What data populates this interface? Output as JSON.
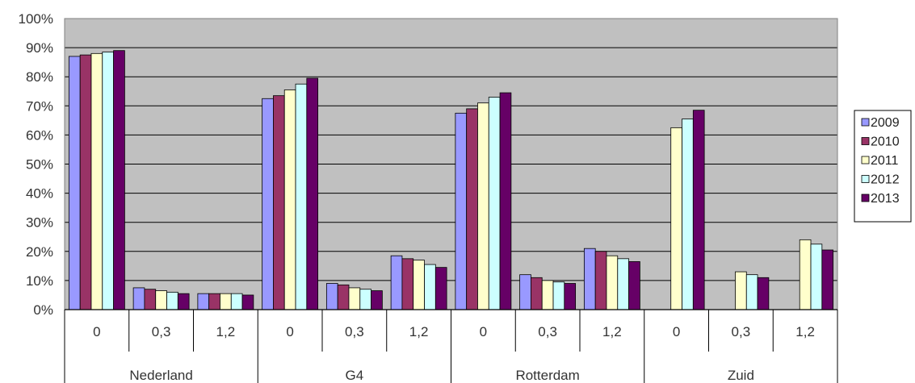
{
  "chart_data": {
    "type": "bar",
    "groups": [
      {
        "name": "Nederland",
        "categories": [
          "0",
          "0,3",
          "1,2"
        ]
      },
      {
        "name": "G4",
        "categories": [
          "0",
          "0,3",
          "1,2"
        ]
      },
      {
        "name": "Rotterdam",
        "categories": [
          "0",
          "0,3",
          "1,2"
        ]
      },
      {
        "name": "Zuid",
        "categories": [
          "0",
          "0,3",
          "1,2"
        ]
      }
    ],
    "series": [
      {
        "name": "2009",
        "color": "#9999ff",
        "values": [
          87,
          7.5,
          5.5,
          72.5,
          9,
          18.5,
          67.5,
          12,
          21,
          null,
          null,
          null
        ]
      },
      {
        "name": "2010",
        "color": "#993366",
        "values": [
          87.5,
          7,
          5.5,
          73.5,
          8.5,
          17.5,
          69,
          11,
          20,
          null,
          null,
          null
        ]
      },
      {
        "name": "2011",
        "color": "#ffffcc",
        "values": [
          88,
          6.5,
          5.5,
          75.5,
          7.5,
          17,
          71,
          10,
          18.5,
          62.5,
          13,
          24
        ]
      },
      {
        "name": "2012",
        "color": "#ccffff",
        "values": [
          88.5,
          6,
          5.5,
          77.5,
          7,
          15.5,
          73,
          9.5,
          17.5,
          65.5,
          12,
          22.5
        ]
      },
      {
        "name": "2013",
        "color": "#660066",
        "values": [
          89,
          5.5,
          5,
          79.5,
          6.5,
          14.5,
          74.5,
          9,
          16.5,
          68.5,
          11,
          20.5
        ]
      }
    ],
    "yticks": [
      "0%",
      "10%",
      "20%",
      "30%",
      "40%",
      "50%",
      "60%",
      "70%",
      "80%",
      "90%",
      "100%"
    ],
    "ylim": [
      0,
      100
    ],
    "plot_background": "#c0c0c0",
    "grid": true,
    "legend_position": "right"
  }
}
